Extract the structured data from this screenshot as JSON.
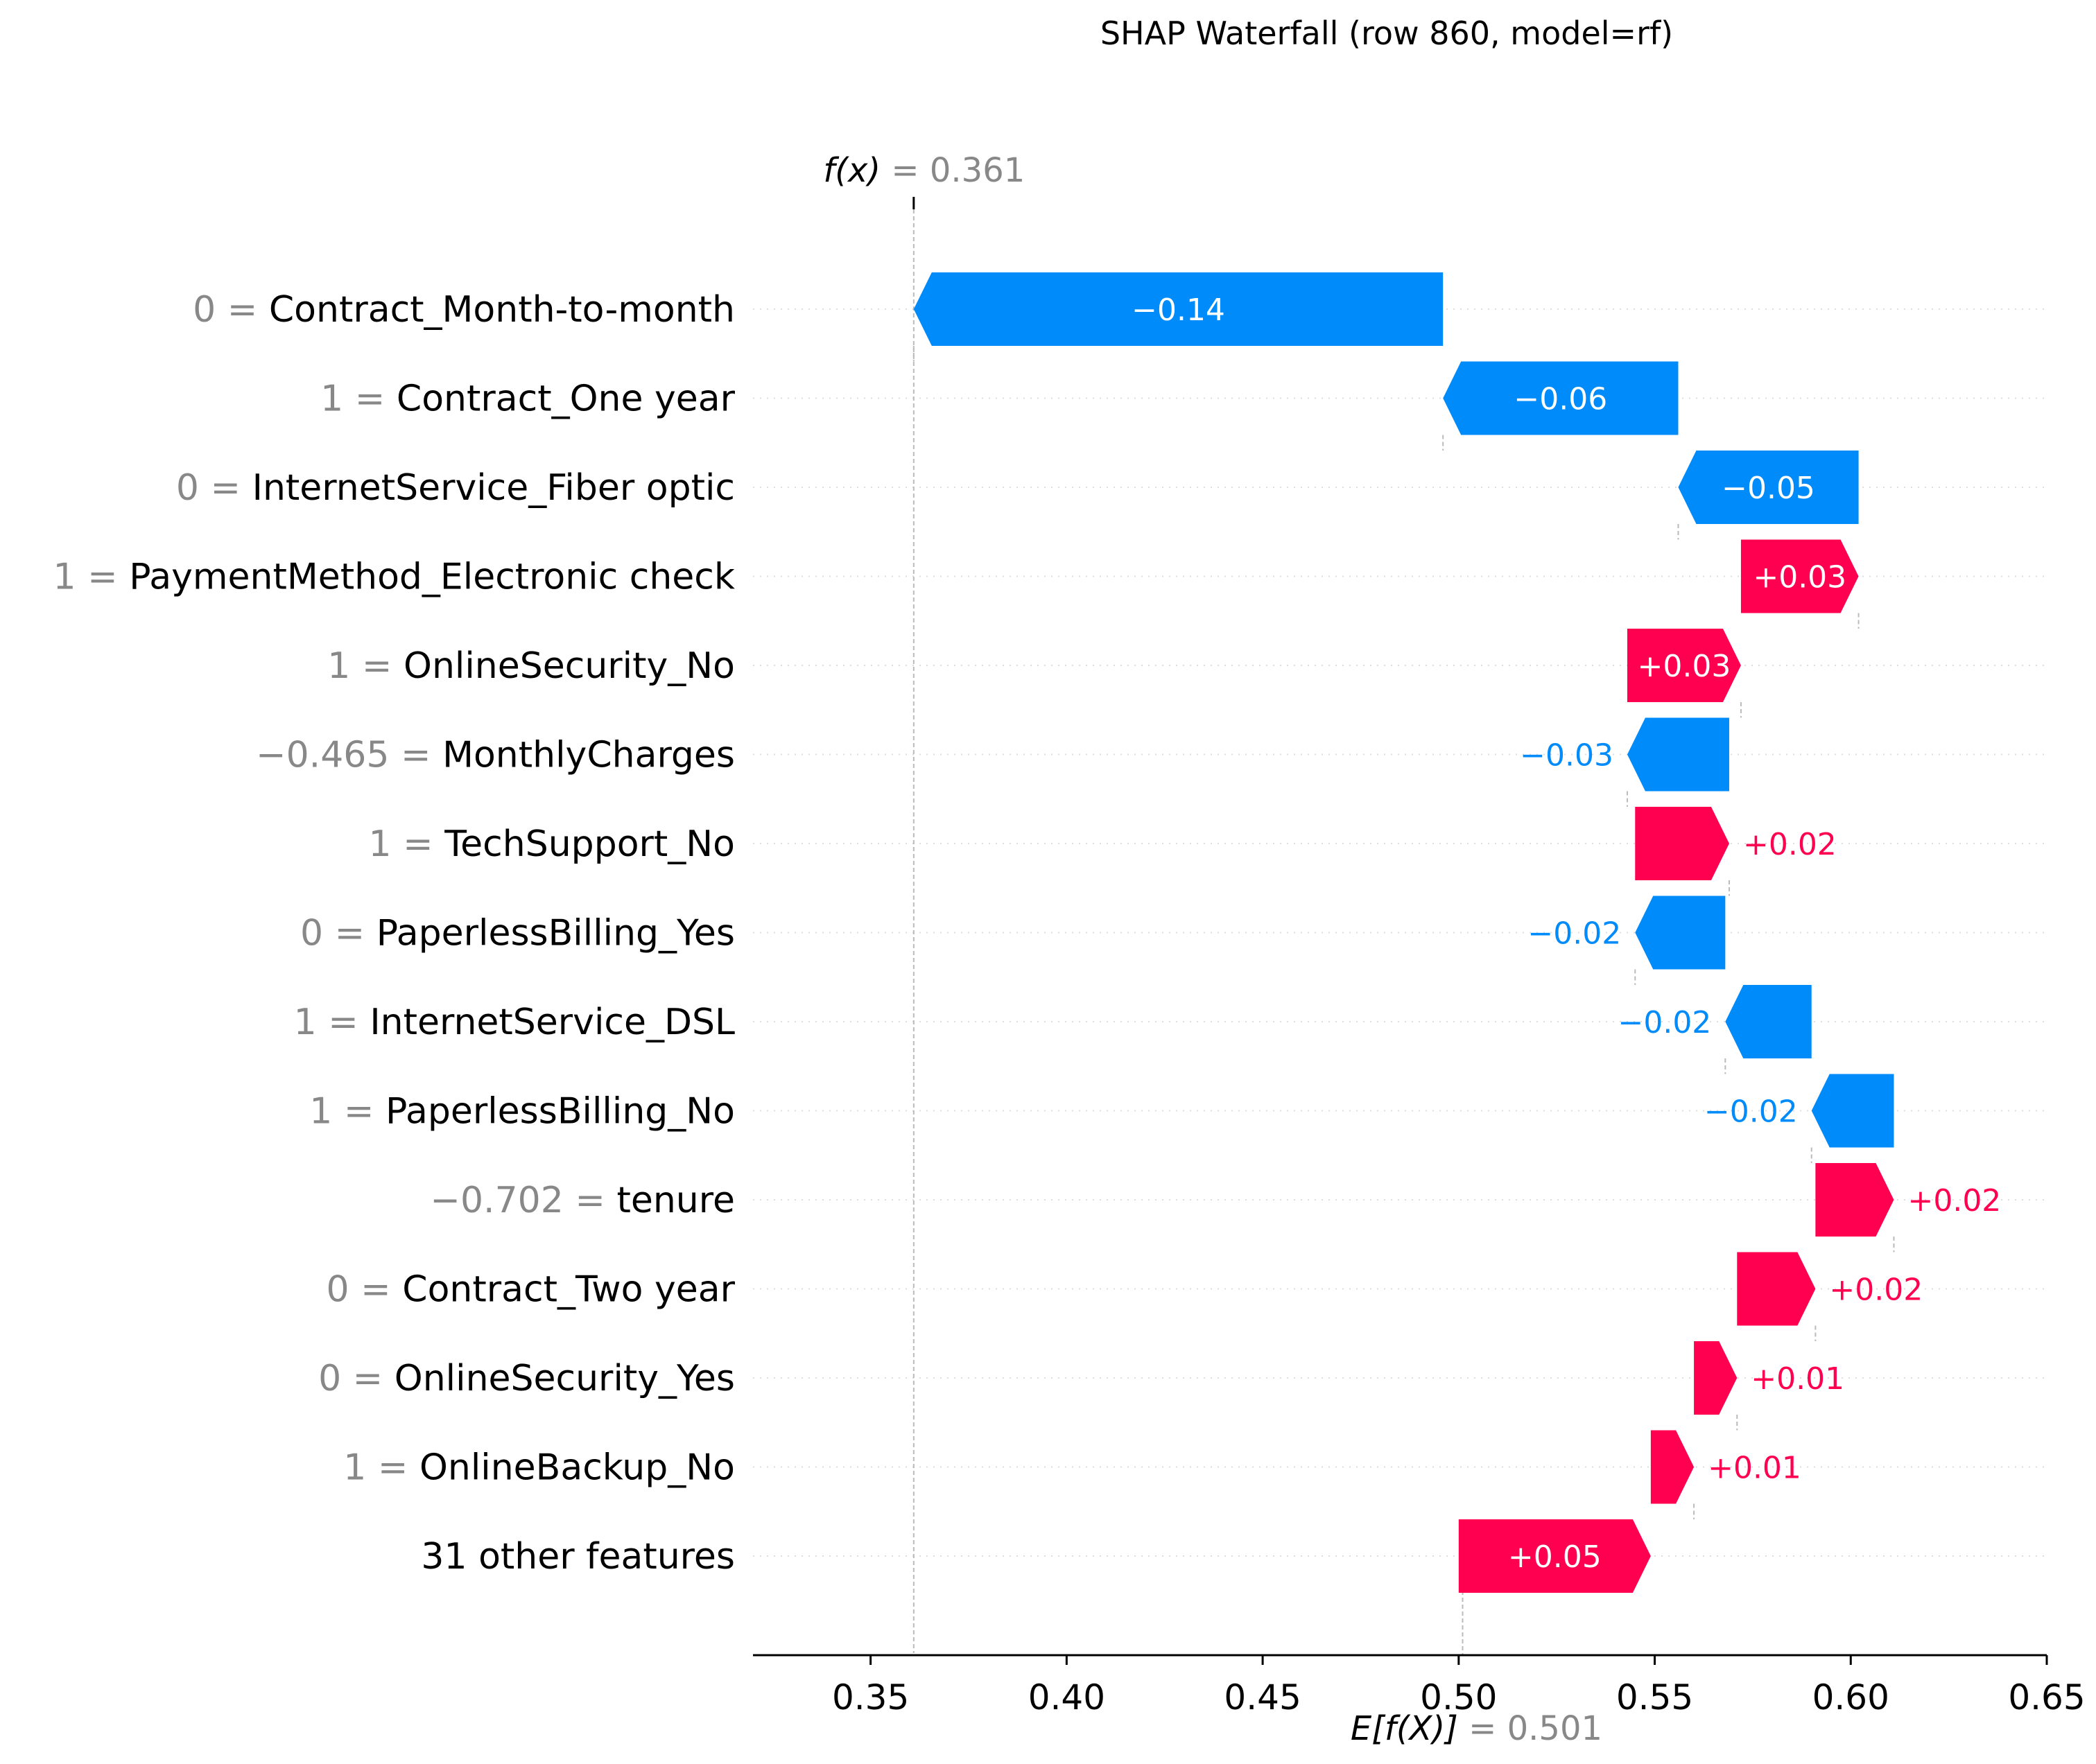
{
  "chart_data": {
    "type": "waterfall",
    "title": "SHAP Waterfall (row 860, model=rf)",
    "fx": {
      "label": "f(x)",
      "eq": " = ",
      "value": "0.361",
      "num": 0.361
    },
    "efx": {
      "label": "E[f(X)]",
      "eq": " = ",
      "value": "0.501",
      "num": 0.501
    },
    "xlim": [
      0.32,
      0.65
    ],
    "xticks": [
      0.35,
      0.4,
      0.45,
      0.5,
      0.55,
      0.6,
      0.65
    ],
    "xtick_labels": [
      "0.35",
      "0.40",
      "0.45",
      "0.50",
      "0.55",
      "0.60",
      "0.65"
    ],
    "colors": {
      "positive": "#ff0051",
      "negative": "#008bfb",
      "value": "#888888"
    },
    "features": [
      {
        "value": "0",
        "name": "Contract_Month-to-month",
        "shap": -0.135,
        "label": "−0.14",
        "start": 0.496
      },
      {
        "value": "1",
        "name": "Contract_One year",
        "shap": -0.06,
        "label": "−0.06",
        "start": 0.556
      },
      {
        "value": "0",
        "name": "InternetService_Fiber optic",
        "shap": -0.046,
        "label": "−0.05",
        "start": 0.602
      },
      {
        "value": "1",
        "name": "PaymentMethod_Electronic check",
        "shap": 0.03,
        "label": "+0.03",
        "start": 0.572
      },
      {
        "value": "1",
        "name": "OnlineSecurity_No",
        "shap": 0.029,
        "label": "+0.03",
        "start": 0.543
      },
      {
        "value": "−0.465",
        "name": "MonthlyCharges",
        "shap": -0.026,
        "label": "−0.03",
        "start": 0.569
      },
      {
        "value": "1",
        "name": "TechSupport_No",
        "shap": 0.024,
        "label": "+0.02",
        "start": 0.545
      },
      {
        "value": "0",
        "name": "PaperlessBilling_Yes",
        "shap": -0.023,
        "label": "−0.02",
        "start": 0.568
      },
      {
        "value": "1",
        "name": "InternetService_DSL",
        "shap": -0.022,
        "label": "−0.02",
        "start": 0.59
      },
      {
        "value": "1",
        "name": "PaperlessBilling_No",
        "shap": -0.021,
        "label": "−0.02",
        "start": 0.611
      },
      {
        "value": "−0.702",
        "name": "tenure",
        "shap": 0.02,
        "label": "+0.02",
        "start": 0.591
      },
      {
        "value": "0",
        "name": "Contract_Two year",
        "shap": 0.02,
        "label": "+0.02",
        "start": 0.571
      },
      {
        "value": "0",
        "name": "OnlineSecurity_Yes",
        "shap": 0.011,
        "label": "+0.01",
        "start": 0.56
      },
      {
        "value": "1",
        "name": "OnlineBackup_No",
        "shap": 0.011,
        "label": "+0.01",
        "start": 0.549
      },
      {
        "value": "",
        "name": "31 other features",
        "shap": 0.049,
        "label": "+0.05",
        "start": 0.5
      }
    ]
  }
}
